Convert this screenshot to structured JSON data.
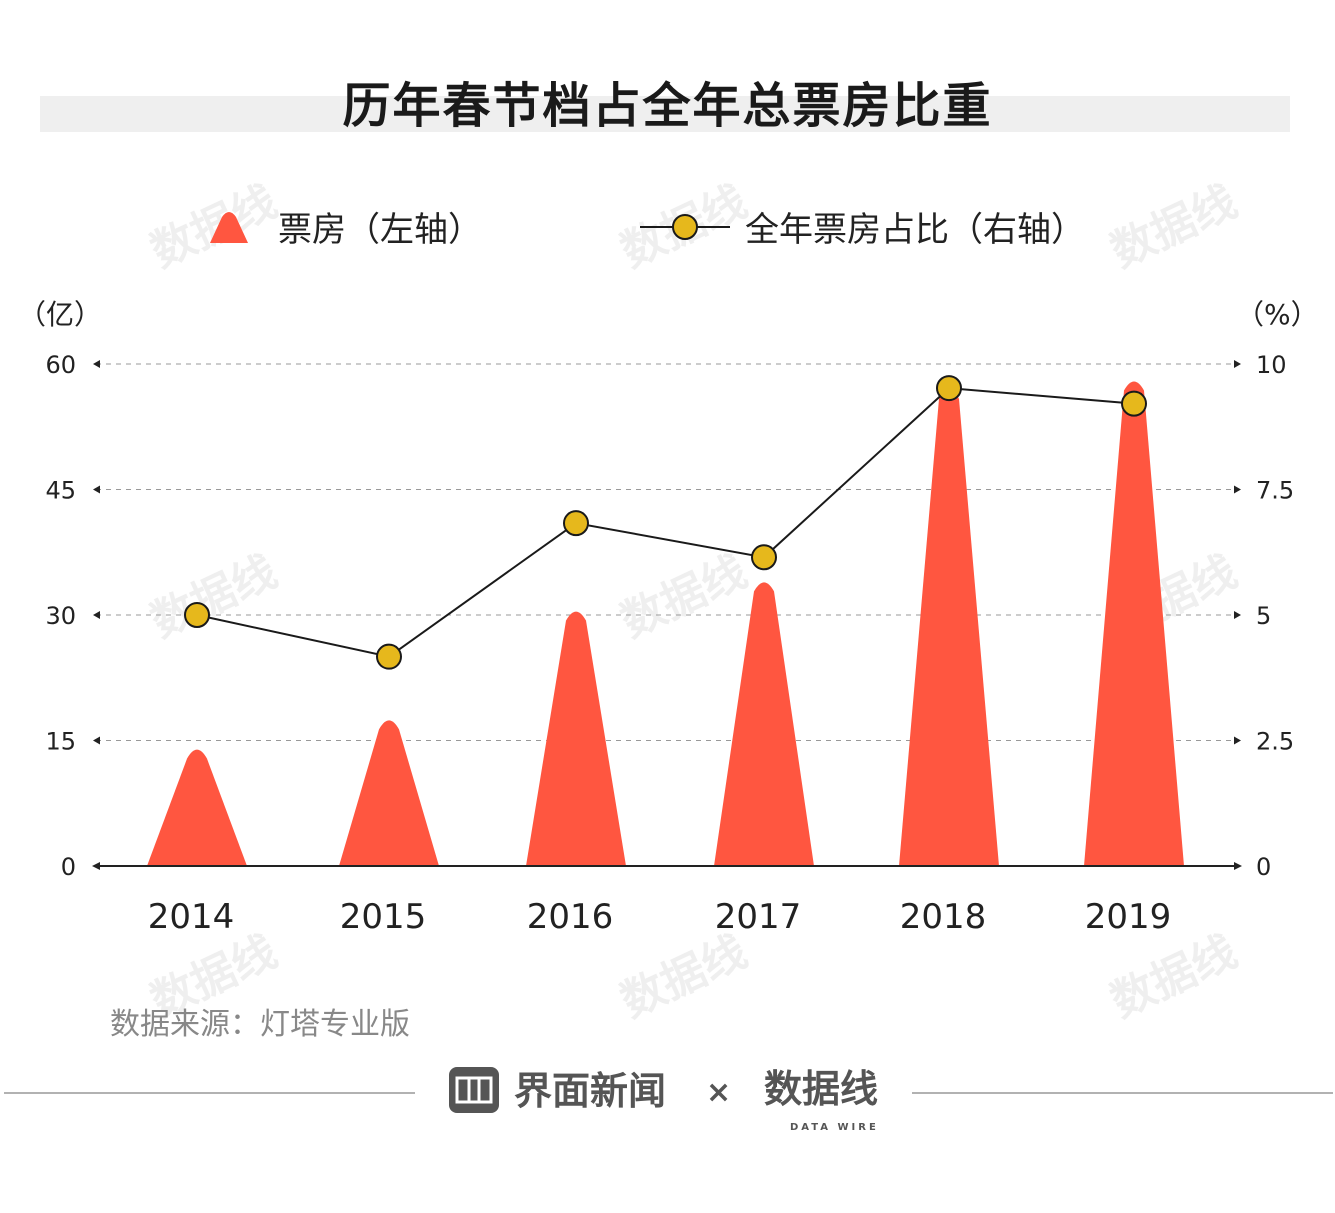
{
  "title": "历年春节档占全年总票房比重",
  "legend": {
    "bar_label": "票房（左轴）",
    "line_label": "全年票房占比（右轴）"
  },
  "left_axis": {
    "unit": "（亿）",
    "ticks": [
      "0",
      "15",
      "30",
      "45",
      "60"
    ]
  },
  "right_axis": {
    "unit": "（%）",
    "ticks": [
      "0",
      "2.5",
      "5",
      "7.5",
      "10"
    ]
  },
  "source": "数据来源：灯塔专业版",
  "footer": {
    "brand_left": "界面新闻",
    "separator": "×",
    "brand_right": "数据线",
    "brand_right_sub": "DATA WIRE"
  },
  "colors": {
    "bar": "#ff5640",
    "line": "#1a1a1a",
    "marker": "#e6b81c",
    "axis": "#222222",
    "grid": "#999999"
  },
  "chart_data": {
    "type": "bar+line",
    "categories": [
      "2014",
      "2015",
      "2016",
      "2017",
      "2018",
      "2019"
    ],
    "series": [
      {
        "name": "票房（左轴）",
        "type": "bar",
        "axis": "left",
        "values": [
          14.5,
          18,
          31,
          34.5,
          57.5,
          58.5
        ]
      },
      {
        "name": "全年票房占比（右轴）",
        "type": "line",
        "axis": "right",
        "values": [
          5.0,
          4.17,
          6.83,
          6.15,
          9.52,
          9.21
        ]
      }
    ],
    "ylim_left": [
      0,
      60
    ],
    "ylim_right": [
      0,
      10
    ],
    "grid": true,
    "legend_position": "top"
  }
}
